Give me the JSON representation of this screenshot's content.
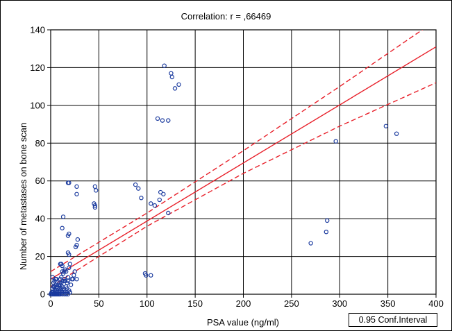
{
  "chart_data": {
    "type": "scatter",
    "title": "Correlation: r =   ,66469",
    "xlabel": "PSA value (ng/ml)",
    "ylabel": "Number of metastases on bone scan",
    "xlim": [
      0,
      400
    ],
    "ylim": [
      0,
      140
    ],
    "x_ticks": [
      "0",
      "50",
      "100",
      "150",
      "200",
      "250",
      "300",
      "350",
      "400"
    ],
    "y_ticks": [
      "0",
      "20",
      "40",
      "60",
      "80",
      "100",
      "120",
      "140"
    ],
    "grid": true,
    "legend": "0.95 Conf.Interval",
    "legend_position": "bottom-right",
    "colors": {
      "points": "#1a3a9e",
      "fit": "#e8202a",
      "grid": "#000000"
    },
    "regression_line": {
      "x": [
        0,
        400
      ],
      "y": [
        8,
        131
      ]
    },
    "confidence_band": {
      "upper": {
        "x": [
          0,
          100,
          200,
          300,
          400
        ],
        "y": [
          12,
          43,
          76,
          110,
          145
        ]
      },
      "lower": {
        "x": [
          0,
          100,
          200,
          300,
          400
        ],
        "y": [
          4,
          36,
          64,
          89,
          112
        ]
      }
    },
    "series": [
      {
        "points": [
          [
            0,
            0
          ],
          [
            1,
            0
          ],
          [
            2,
            0
          ],
          [
            3,
            0
          ],
          [
            4,
            0
          ],
          [
            5,
            0
          ],
          [
            6,
            0
          ],
          [
            7,
            0
          ],
          [
            8,
            0
          ],
          [
            9,
            0
          ],
          [
            10,
            0
          ],
          [
            12,
            0
          ],
          [
            14,
            0
          ],
          [
            15,
            1
          ],
          [
            16,
            0
          ],
          [
            18,
            0
          ],
          [
            1,
            1
          ],
          [
            2,
            1
          ],
          [
            3,
            1
          ],
          [
            4,
            2
          ],
          [
            5,
            1
          ],
          [
            6,
            2
          ],
          [
            7,
            1
          ],
          [
            8,
            2
          ],
          [
            9,
            3
          ],
          [
            10,
            2
          ],
          [
            11,
            3
          ],
          [
            12,
            1
          ],
          [
            13,
            3
          ],
          [
            14,
            2
          ],
          [
            2,
            3
          ],
          [
            3,
            4
          ],
          [
            4,
            4
          ],
          [
            5,
            5
          ],
          [
            6,
            4
          ],
          [
            7,
            3
          ],
          [
            8,
            5
          ],
          [
            9,
            6
          ],
          [
            10,
            5
          ],
          [
            11,
            6
          ],
          [
            12,
            4
          ],
          [
            13,
            7
          ],
          [
            14,
            8
          ],
          [
            15,
            7
          ],
          [
            3,
            6
          ],
          [
            4,
            7
          ],
          [
            5,
            8
          ],
          [
            6,
            8
          ],
          [
            2,
            9
          ],
          [
            10,
            8
          ],
          [
            11,
            9
          ],
          [
            12,
            12
          ],
          [
            13,
            11
          ],
          [
            14,
            12
          ],
          [
            15,
            13
          ],
          [
            16,
            12
          ],
          [
            17,
            6
          ],
          [
            18,
            7
          ],
          [
            16,
            4
          ],
          [
            17,
            3
          ],
          [
            19,
            2
          ],
          [
            20,
            1
          ],
          [
            18,
            9
          ],
          [
            19,
            14
          ],
          [
            20,
            16
          ],
          [
            11,
            16
          ],
          [
            12,
            15
          ],
          [
            10,
            16
          ],
          [
            22,
            8
          ],
          [
            23,
            8
          ],
          [
            24,
            10
          ],
          [
            25,
            12
          ],
          [
            21,
            5
          ],
          [
            27,
            8
          ],
          [
            20,
            1
          ],
          [
            27,
            26
          ],
          [
            28,
            29
          ],
          [
            26,
            25
          ],
          [
            18,
            22
          ],
          [
            19,
            21
          ],
          [
            18,
            31
          ],
          [
            19,
            32
          ],
          [
            12,
            35
          ],
          [
            13,
            41
          ],
          [
            18,
            59
          ],
          [
            19,
            59
          ],
          [
            27,
            57
          ],
          [
            27,
            53
          ],
          [
            46,
            57
          ],
          [
            47,
            55
          ],
          [
            45,
            48
          ],
          [
            46,
            47
          ],
          [
            46,
            46
          ],
          [
            88,
            58
          ],
          [
            91,
            56
          ],
          [
            94,
            51
          ],
          [
            104,
            48
          ],
          [
            108,
            47
          ],
          [
            113,
            50
          ],
          [
            114,
            54
          ],
          [
            117,
            53
          ],
          [
            122,
            43
          ],
          [
            98,
            11
          ],
          [
            99,
            10
          ],
          [
            104,
            10
          ],
          [
            111,
            93
          ],
          [
            116,
            92
          ],
          [
            122,
            92
          ],
          [
            118,
            121
          ],
          [
            125,
            117
          ],
          [
            126,
            115
          ],
          [
            129,
            109
          ],
          [
            133,
            111
          ],
          [
            270,
            27
          ],
          [
            286,
            33
          ],
          [
            287,
            39
          ],
          [
            296,
            81
          ],
          [
            348,
            89
          ],
          [
            359,
            85
          ]
        ]
      }
    ]
  }
}
